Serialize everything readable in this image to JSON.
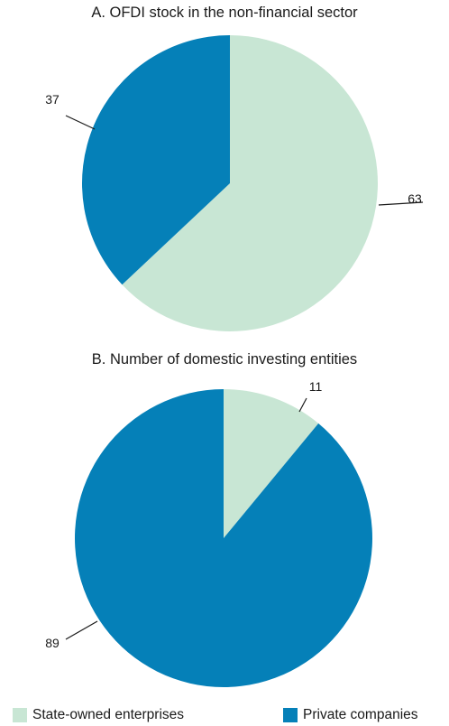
{
  "colors": {
    "soe": "#c8e6d4",
    "private": "#0580b8",
    "leader": "#1a1a1a"
  },
  "chart_data": [
    {
      "type": "pie",
      "title": "A. OFDI stock in the non-financial sector",
      "slices": [
        {
          "label": "State-owned enterprises",
          "value": 63
        },
        {
          "label": "Private companies",
          "value": 37
        }
      ],
      "legend": "bottom"
    },
    {
      "type": "pie",
      "title": "B. Number of domestic investing entities",
      "slices": [
        {
          "label": "State-owned enterprises",
          "value": 11
        },
        {
          "label": "Private companies",
          "value": 89
        }
      ],
      "legend": "bottom"
    }
  ],
  "legend": [
    {
      "label": "State-owned enterprises",
      "color_key": "soe"
    },
    {
      "label": "Private companies",
      "color_key": "private"
    }
  ]
}
